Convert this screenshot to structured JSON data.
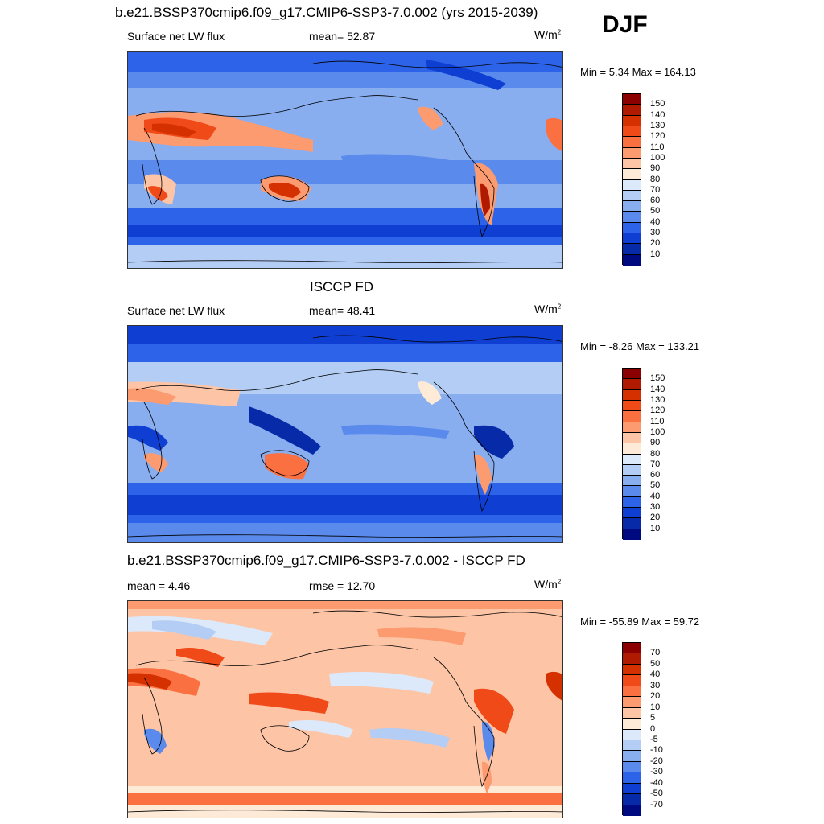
{
  "season": "DJF",
  "panels": [
    {
      "title": "b.e21.BSSP370cmip6.f09_g17.CMIP6-SSP3-7.0.002 (yrs 2015-2039)",
      "variable": "Surface net LW flux",
      "stat_text": "mean=  52.87",
      "units": "W/m",
      "units_sup": "2",
      "minmax": "Min =   5.34 Max = 164.13",
      "colorbar_labels": [
        "150",
        "140",
        "130",
        "120",
        "110",
        "100",
        "90",
        "80",
        "70",
        "60",
        "50",
        "40",
        "30",
        "20",
        "10"
      ],
      "colorbar_colors": [
        "#8b0000",
        "#b01a00",
        "#d43000",
        "#f04a18",
        "#fa7040",
        "#fc9a70",
        "#fdc4a6",
        "#fdebd8",
        "#dce9fb",
        "#b4cdf5",
        "#89aef0",
        "#5a8aec",
        "#2d63e8",
        "#0e3fd2",
        "#062aa8",
        "#000a80"
      ]
    },
    {
      "title": "ISCCP FD",
      "variable": "Surface net LW flux",
      "stat_text": "mean=  48.41",
      "units": "W/m",
      "units_sup": "2",
      "minmax": "Min =  -8.26 Max = 133.21",
      "colorbar_labels": [
        "150",
        "140",
        "130",
        "120",
        "110",
        "100",
        "90",
        "80",
        "70",
        "60",
        "50",
        "40",
        "30",
        "20",
        "10"
      ],
      "colorbar_colors": [
        "#8b0000",
        "#b01a00",
        "#d43000",
        "#f04a18",
        "#fa7040",
        "#fc9a70",
        "#fdc4a6",
        "#fdebd8",
        "#dce9fb",
        "#b4cdf5",
        "#89aef0",
        "#5a8aec",
        "#2d63e8",
        "#0e3fd2",
        "#062aa8",
        "#000a80"
      ]
    },
    {
      "title": "b.e21.BSSP370cmip6.f09_g17.CMIP6-SSP3-7.0.002 - ISCCP FD",
      "variable": "mean =   4.46",
      "stat_text": "rmse =  12.70",
      "units": "W/m",
      "units_sup": "2",
      "minmax": "Min = -55.89 Max =  59.72",
      "colorbar_labels": [
        "70",
        "50",
        "40",
        "30",
        "20",
        "10",
        "5",
        "0",
        "-5",
        "-10",
        "-20",
        "-30",
        "-40",
        "-50",
        "-70"
      ],
      "colorbar_colors": [
        "#8b0000",
        "#b01a00",
        "#d43000",
        "#f04a18",
        "#fa7040",
        "#fc9a70",
        "#fdc4a6",
        "#fdebd8",
        "#dce9fb",
        "#b4cdf5",
        "#89aef0",
        "#5a8aec",
        "#2d63e8",
        "#0e3fd2",
        "#062aa8",
        "#000a80"
      ]
    }
  ],
  "chart_data": [
    {
      "type": "heatmap",
      "title": "b.e21.BSSP370cmip6.f09_g17.CMIP6-SSP3-7.0.002 (yrs 2015-2039)",
      "subtitle": "Surface net LW flux",
      "units": "W/m2",
      "mean": 52.87,
      "min": 5.34,
      "max": 164.13,
      "colorbar_levels": [
        10,
        20,
        30,
        40,
        50,
        60,
        70,
        80,
        90,
        100,
        110,
        120,
        130,
        140,
        150
      ]
    },
    {
      "type": "heatmap",
      "title": "ISCCP FD",
      "subtitle": "Surface net LW flux",
      "units": "W/m2",
      "mean": 48.41,
      "min": -8.26,
      "max": 133.21,
      "colorbar_levels": [
        10,
        20,
        30,
        40,
        50,
        60,
        70,
        80,
        90,
        100,
        110,
        120,
        130,
        140,
        150
      ]
    },
    {
      "type": "heatmap",
      "title": "b.e21.BSSP370cmip6.f09_g17.CMIP6-SSP3-7.0.002 - ISCCP FD",
      "units": "W/m2",
      "mean": 4.46,
      "rmse": 12.7,
      "min": -55.89,
      "max": 59.72,
      "colorbar_levels": [
        -70,
        -50,
        -40,
        -30,
        -20,
        -10,
        -5,
        0,
        5,
        10,
        20,
        30,
        40,
        50,
        70
      ]
    }
  ]
}
